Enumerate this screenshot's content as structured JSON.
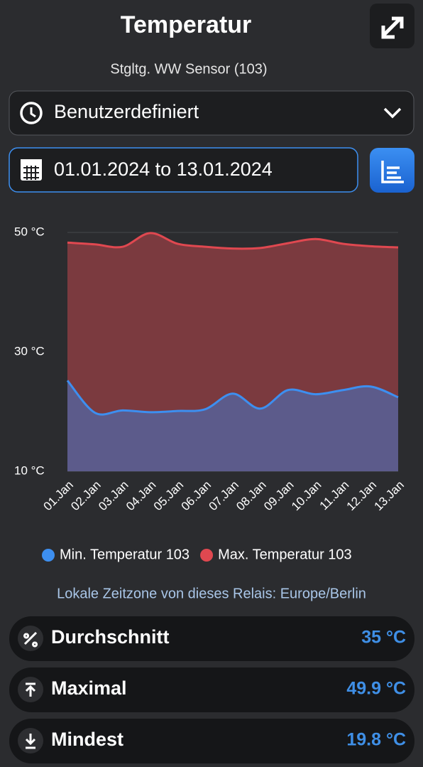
{
  "header": {
    "title": "Temperatur",
    "subtitle": "Stgltg. WW Sensor (103)"
  },
  "range_select": {
    "label": "Benutzerdefiniert"
  },
  "date_range": {
    "label": "01.01.2024 to 13.01.2024"
  },
  "chart_data": {
    "type": "area",
    "categories": [
      "01.Jan",
      "02.Jan",
      "03.Jan",
      "04.Jan",
      "05.Jan",
      "06.Jan",
      "07.Jan",
      "08.Jan",
      "09.Jan",
      "10.Jan",
      "11.Jan",
      "12.Jan",
      "13.Jan"
    ],
    "series": [
      {
        "name": "Min. Temperatur 103",
        "color": "#3d8ff0",
        "fill": "#5c5b8b",
        "values": [
          25.2,
          19.8,
          20.2,
          19.9,
          20.1,
          20.4,
          23.0,
          20.5,
          23.6,
          22.9,
          23.6,
          24.2,
          22.4
        ]
      },
      {
        "name": "Max. Temperatur 103",
        "color": "#e04850",
        "fill": "#7b3a3f",
        "values": [
          48.3,
          48.0,
          47.6,
          49.9,
          48.1,
          47.6,
          47.3,
          47.4,
          48.2,
          48.9,
          48.1,
          47.7,
          47.5
        ]
      }
    ],
    "ylim": [
      10,
      50
    ],
    "yticks": [
      {
        "value": 10,
        "label": "10 °C"
      },
      {
        "value": 30,
        "label": "30 °C"
      },
      {
        "value": 50,
        "label": "50 °C"
      }
    ],
    "grid": true
  },
  "timezone_note": "Lokale Zeitzone von dieses Relais: Europe/Berlin",
  "stats": [
    {
      "label": "Durchschnitt",
      "value": "35 °C"
    },
    {
      "label": "Maximal",
      "value": "49.9 °C"
    },
    {
      "label": "Mindest",
      "value": "19.8 °C"
    }
  ]
}
